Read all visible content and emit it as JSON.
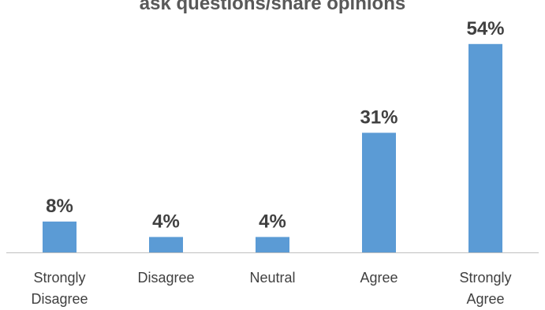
{
  "chart_data": {
    "type": "bar",
    "title": "ask questions/share opinions",
    "categories": [
      [
        "Strongly",
        "Disagree"
      ],
      [
        "Disagree"
      ],
      [
        "Neutral"
      ],
      [
        "Agree"
      ],
      [
        "Strongly",
        "Agree"
      ]
    ],
    "values": [
      8,
      4,
      4,
      31,
      54
    ],
    "data_labels": [
      "8%",
      "4%",
      "4%",
      "31%",
      "54%"
    ],
    "ylim": [
      0,
      56
    ],
    "grid": false,
    "legend": "none",
    "bar_color": "#5B9BD5",
    "axis_color": "#BFBFBF"
  }
}
